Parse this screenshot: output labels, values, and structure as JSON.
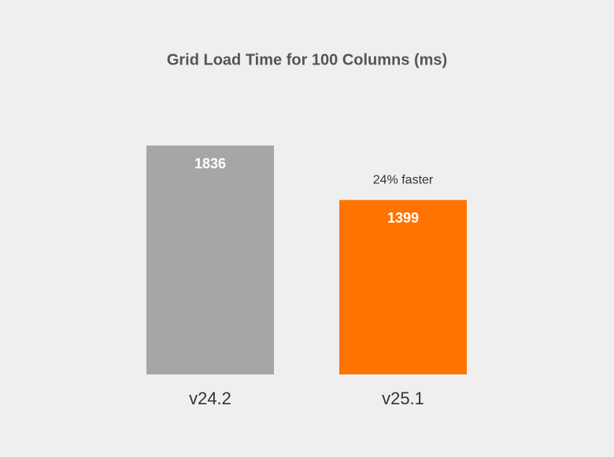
{
  "chart_data": {
    "type": "bar",
    "title": "Grid Load Time for 100 Columns (ms)",
    "categories": [
      "v24.2",
      "v25.1"
    ],
    "values": [
      1836,
      1399
    ],
    "colors": [
      "#a6a6a6",
      "#ff7300"
    ],
    "annotations": [
      {
        "text": "24% faster"
      }
    ]
  }
}
